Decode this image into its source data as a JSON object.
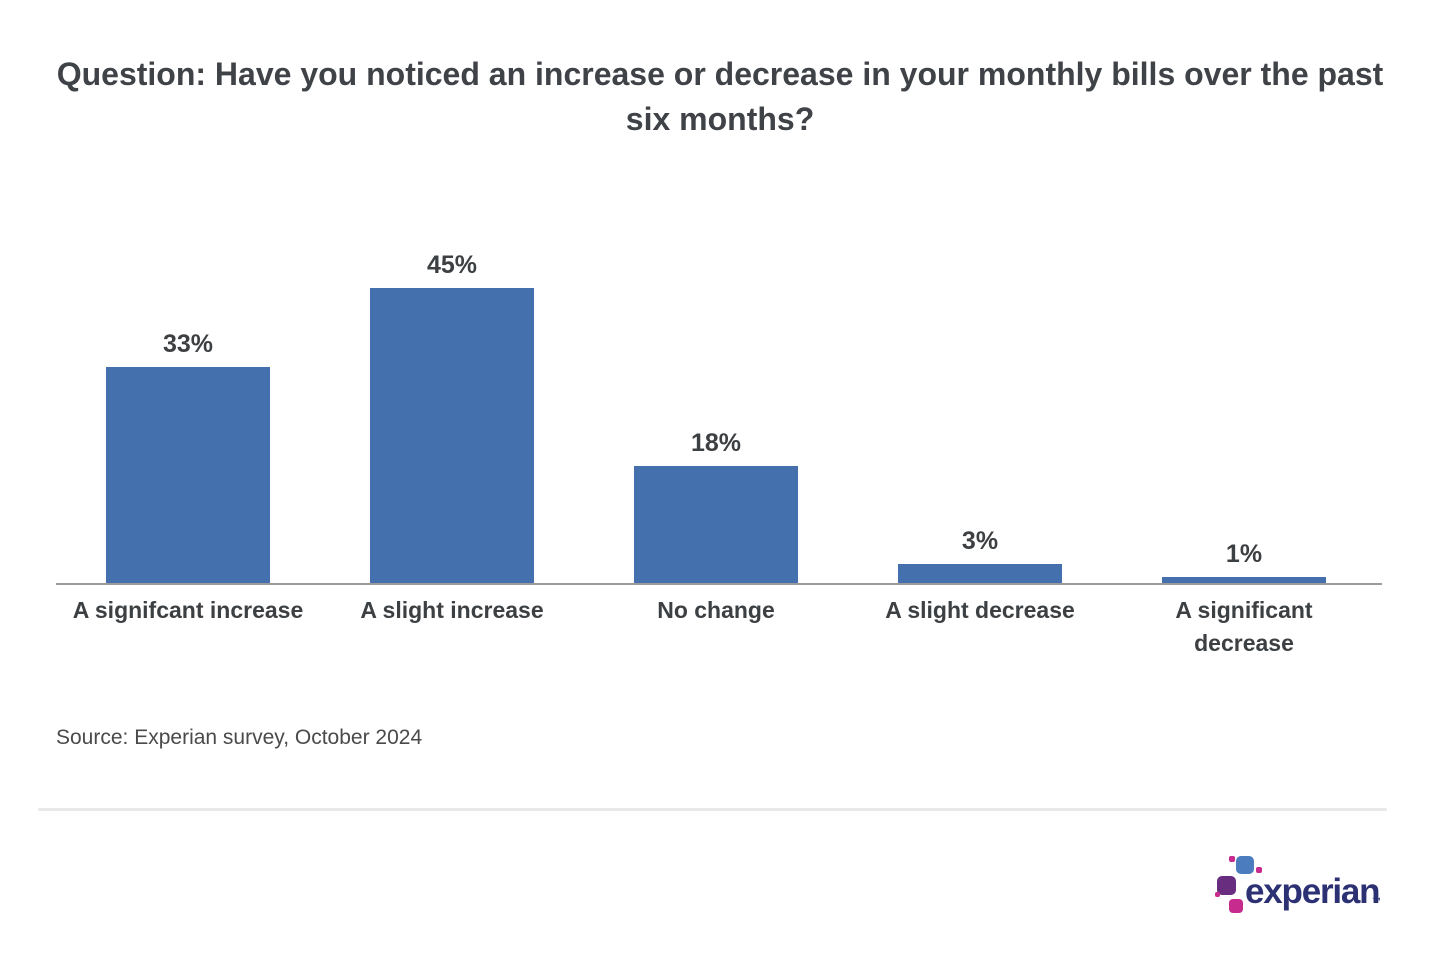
{
  "title": "Question: Have you noticed an increase or decrease in your monthly bills over the past six months?",
  "chart_data": {
    "type": "bar",
    "title": "Question: Have you noticed an increase or decrease in your monthly bills over the past six months?",
    "categories": [
      "A signifcant increase",
      "A slight increase",
      "No change",
      "A slight decrease",
      "A significant decrease"
    ],
    "values": [
      33,
      45,
      18,
      3,
      1
    ],
    "value_labels": [
      "33%",
      "45%",
      "18%",
      "3%",
      "1%"
    ],
    "xlabel": "",
    "ylabel": "",
    "ylim": [
      0,
      50
    ],
    "grid": false,
    "legend": false,
    "data_labels_position": "above-bars",
    "bar_color": "#4471ae",
    "axis_line_color": "#9b9b9b",
    "label_color": "#3d4043"
  },
  "footer": {
    "source": "Source: Experian survey, October 2024",
    "logo": {
      "wordmark": "experian",
      "trademark": "™",
      "wordmark_color": "#2b3173",
      "mark_colors": {
        "blue": "#4a7cbe",
        "purple": "#682d7f",
        "magenta": "#c7２b8e"
      }
    }
  },
  "theme": {
    "background": "#ffffff",
    "title_color": "#3f4347",
    "source_color": "#4a4a4a",
    "divider_color": "#e8e8e8"
  }
}
